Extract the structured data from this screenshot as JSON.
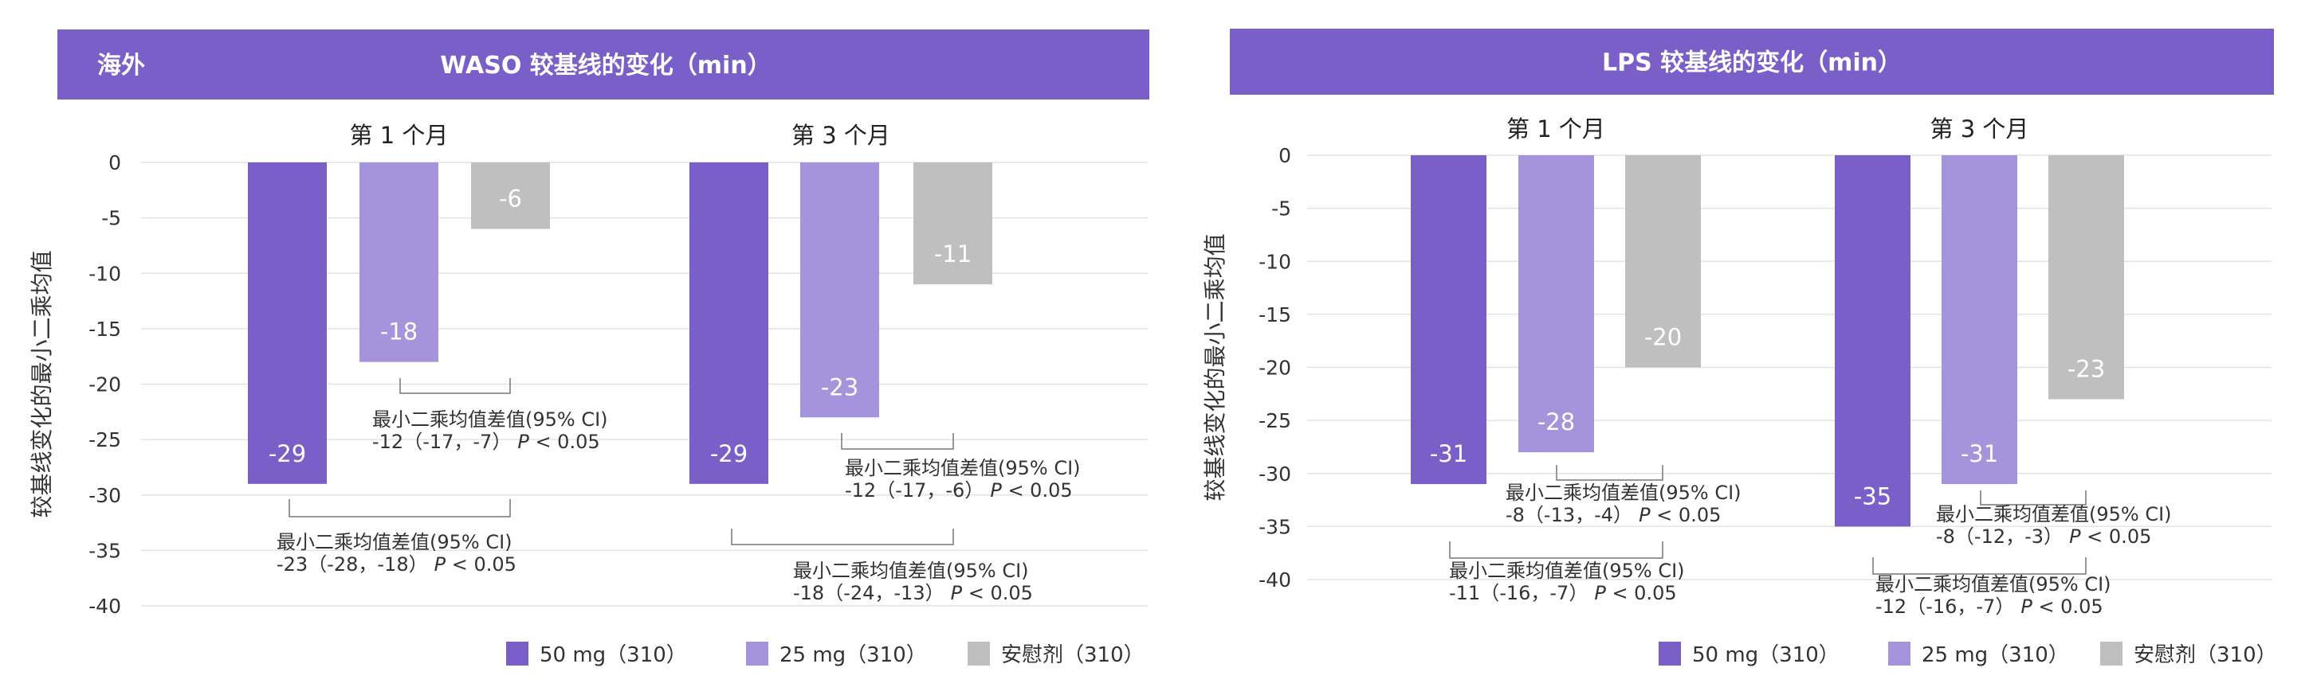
{
  "colors": {
    "header": "#7B5FC9",
    "series_50mg": "#7B5FC9",
    "series_25mg": "#A593DB",
    "series_placebo": "#BFBFBF",
    "grid": "#E3E3E3",
    "bracket": "#777777"
  },
  "chart_data": [
    {
      "type": "bar",
      "region_tag": "海外",
      "title": "WASO 较基线的变化（min）",
      "ylabel": "较基线变化的最小二乘均值",
      "ylim": [
        -40,
        0
      ],
      "yticks": [
        "0",
        "-5",
        "-10",
        "-15",
        "-20",
        "-25",
        "-30",
        "-35",
        "-40"
      ],
      "grid": true,
      "legend_position": "bottom-right",
      "categories": [
        "第 1 个月",
        "第 3 个月"
      ],
      "series": [
        {
          "name": "50 mg（310）",
          "values": [
            -29,
            -29
          ]
        },
        {
          "name": "25 mg（310）",
          "values": [
            -18,
            -23
          ]
        },
        {
          "name": "安慰剂（310）",
          "values": [
            -6,
            -11
          ]
        }
      ],
      "annotations": [
        {
          "category": 0,
          "compare": "25 mg vs 安慰剂",
          "label": "最小二乘均值差值(95% CI)",
          "estimate": "-12（-17，-7）",
          "p": "P",
          "p_value": " < 0.05"
        },
        {
          "category": 0,
          "compare": "50 mg vs 安慰剂",
          "label": "最小二乘均值差值(95% CI)",
          "estimate": "-23（-28，-18）",
          "p": "P",
          "p_value": " < 0.05"
        },
        {
          "category": 1,
          "compare": "25 mg vs 安慰剂",
          "label": "最小二乘均值差值(95% CI)",
          "estimate": "-12（-17，-6）",
          "p": "P",
          "p_value": " < 0.05"
        },
        {
          "category": 1,
          "compare": "50 mg vs 安慰剂",
          "label": "最小二乘均值差值(95% CI)",
          "estimate": "-18（-24，-13）",
          "p": "P",
          "p_value": " < 0.05"
        }
      ]
    },
    {
      "type": "bar",
      "region_tag": "",
      "title": "LPS 较基线的变化（min）",
      "ylabel": "较基线变化的最小二乘均值",
      "ylim": [
        -40,
        0
      ],
      "yticks": [
        "0",
        "-5",
        "-10",
        "-15",
        "-20",
        "-25",
        "-30",
        "-35",
        "-40"
      ],
      "grid": true,
      "legend_position": "bottom-right",
      "categories": [
        "第 1 个月",
        "第 3 个月"
      ],
      "series": [
        {
          "name": "50 mg（310）",
          "values": [
            -31,
            -35
          ]
        },
        {
          "name": "25 mg（310）",
          "values": [
            -28,
            -31
          ]
        },
        {
          "name": "安慰剂（310）",
          "values": [
            -20,
            -23
          ]
        }
      ],
      "annotations": [
        {
          "category": 0,
          "compare": "25 mg vs 安慰剂",
          "label": "最小二乘均值差值(95% CI)",
          "estimate": "-8（-13，-4）",
          "p": "P",
          "p_value": " < 0.05"
        },
        {
          "category": 0,
          "compare": "50 mg vs 安慰剂",
          "label": "最小二乘均值差值(95% CI)",
          "estimate": "-11（-16，-7）",
          "p": "P",
          "p_value": " < 0.05"
        },
        {
          "category": 1,
          "compare": "25 mg vs 安慰剂",
          "label": "最小二乘均值差值(95% CI)",
          "estimate": "-8（-12，-3）",
          "p": "P",
          "p_value": " < 0.05"
        },
        {
          "category": 1,
          "compare": "50 mg vs 安慰剂",
          "label": "最小二乘均值差值(95% CI)",
          "estimate": "-12（-16，-7）",
          "p": "P",
          "p_value": " < 0.05"
        }
      ]
    }
  ]
}
